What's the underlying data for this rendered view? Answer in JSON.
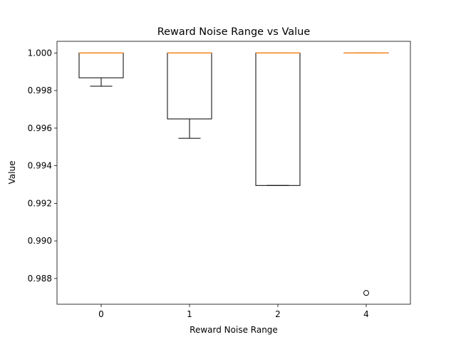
{
  "chart_data": {
    "type": "box",
    "title": "Reward Noise Range vs Value",
    "xlabel": "Reward Noise Range",
    "ylabel": "Value",
    "categories": [
      "0",
      "1",
      "2",
      "4"
    ],
    "ylim": [
      0.98663,
      1.00062
    ],
    "yticks": [
      0.988,
      0.99,
      0.992,
      0.994,
      0.996,
      0.998,
      1.0
    ],
    "ytick_labels": [
      "0.988",
      "0.990",
      "0.992",
      "0.994",
      "0.996",
      "0.998",
      "1.000"
    ],
    "grid": false,
    "colors": {
      "box": "#000000",
      "median": "#ff7f0e",
      "flier": "#000000"
    },
    "boxes": [
      {
        "category": "0",
        "whisker_low": 0.99823,
        "q1": 0.99868,
        "median": 1.0,
        "q3": 1.0,
        "whisker_high": 1.0,
        "fliers": []
      },
      {
        "category": "1",
        "whisker_low": 0.99546,
        "q1": 0.99649,
        "median": 1.0,
        "q3": 1.0,
        "whisker_high": 1.0,
        "fliers": []
      },
      {
        "category": "2",
        "whisker_low": 0.99295,
        "q1": 0.99295,
        "median": 1.0,
        "q3": 1.0,
        "whisker_high": 1.0,
        "fliers": []
      },
      {
        "category": "4",
        "whisker_low": 1.0,
        "q1": 1.0,
        "median": 1.0,
        "q3": 1.0,
        "whisker_high": 1.0,
        "fliers": [
          0.98723
        ]
      }
    ]
  }
}
